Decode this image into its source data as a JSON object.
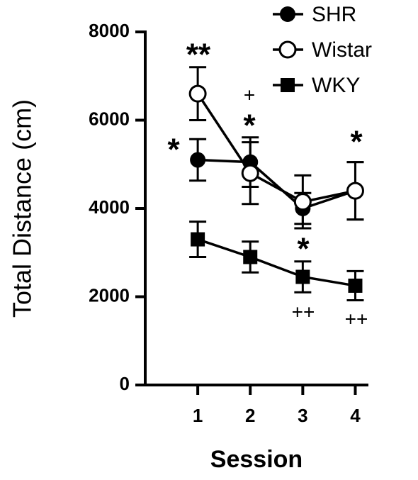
{
  "chart_data": {
    "type": "line",
    "x_label": "Session",
    "y_label": "Total Distance (cm)",
    "x": [
      1,
      2,
      3,
      4
    ],
    "xlim": [
      0,
      4.25
    ],
    "xticks": [
      1,
      2,
      3,
      4
    ],
    "ylim": [
      0,
      8000
    ],
    "yticks": [
      0,
      2000,
      4000,
      6000,
      8000
    ],
    "series": [
      {
        "name": "SHR",
        "color": "#000000",
        "marker": "filled-circle",
        "values": [
          5100,
          5050,
          4000,
          4400
        ],
        "errors": [
          470,
          560,
          350,
          650
        ]
      },
      {
        "name": "Wistar",
        "color": "#000000",
        "marker": "open-circle",
        "values": [
          6600,
          4800,
          4150,
          4400
        ],
        "errors": [
          600,
          700,
          600,
          650
        ]
      },
      {
        "name": "WKY",
        "color": "#000000",
        "marker": "filled-square",
        "values": [
          3300,
          2900,
          2450,
          2250
        ],
        "errors": [
          400,
          350,
          350,
          330
        ]
      }
    ],
    "annotations": [
      "**",
      "*",
      "+",
      "*",
      "*",
      "++",
      "*",
      "++"
    ],
    "legend": "top-right"
  }
}
